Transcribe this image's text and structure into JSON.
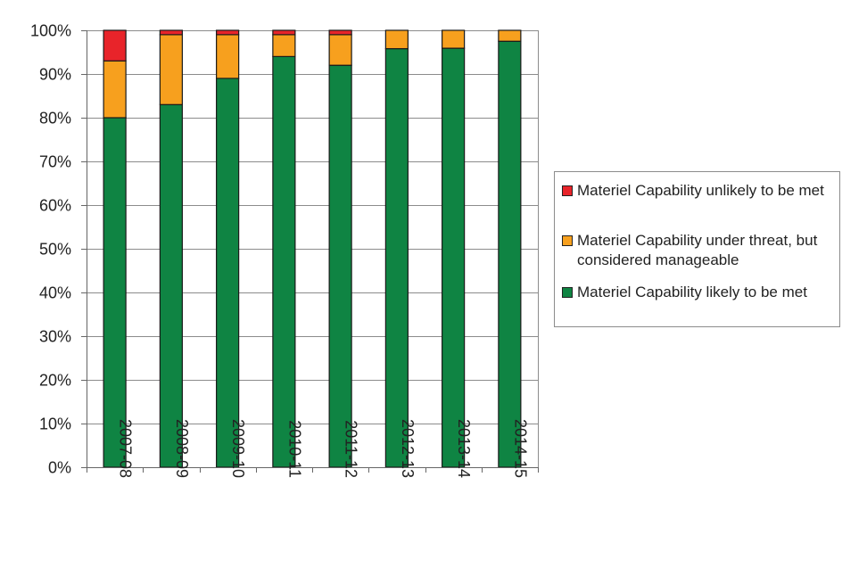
{
  "chart_data": {
    "type": "bar",
    "stacked": true,
    "categories": [
      "2007-08",
      "2008-09",
      "2009-10",
      "2010-11",
      "2011-12",
      "2012-13",
      "2013-14",
      "2014-15"
    ],
    "series": [
      {
        "name": "Materiel Capability likely to be met",
        "color": "#0f8443",
        "values": [
          80,
          83,
          89,
          94,
          92,
          95.8,
          95.9,
          97.5
        ]
      },
      {
        "name": "Materiel Capability under threat, but considered manageable",
        "color": "#f7a01e",
        "values": [
          13,
          16,
          10,
          5,
          7,
          4.2,
          4.1,
          2.5
        ]
      },
      {
        "name": "Materiel Capability unlikely to be met",
        "color": "#e8242a",
        "values": [
          7,
          1,
          1,
          1,
          1,
          0,
          0,
          0
        ]
      }
    ],
    "legend_order": [
      2,
      1,
      0
    ],
    "yticks": [
      "0%",
      "10%",
      "20%",
      "30%",
      "40%",
      "50%",
      "60%",
      "70%",
      "80%",
      "90%",
      "100%"
    ],
    "ylim": [
      0,
      100
    ],
    "grid": true,
    "legend_position": "right",
    "title": "",
    "xlabel": "",
    "ylabel": ""
  }
}
